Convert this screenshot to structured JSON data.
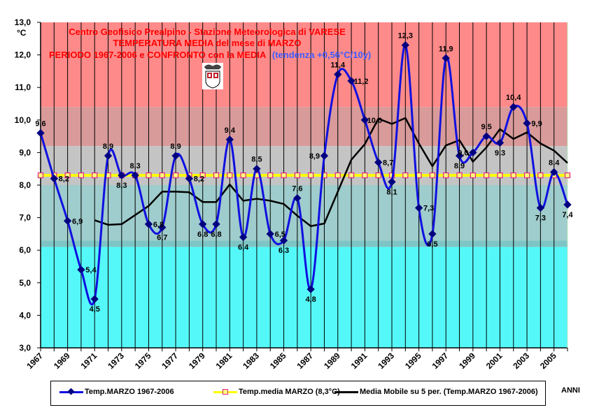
{
  "chart_data": {
    "type": "line",
    "title_lines": [
      "Centro Geofisico Prealpino - Stazione Meteorologica di VARESE",
      "TEMPERATURA MEDIA del mese di MARZO",
      "PERIODO 1967-2006 e CONFRONTO con la MEDIA"
    ],
    "trend_annotation": "(tendenza +0,56°C/10y)",
    "ylabel": "°C",
    "xlabel": "ANNI",
    "ylim": [
      3.0,
      13.0
    ],
    "y_ticks": [
      "3,0",
      "4,0",
      "5,0",
      "6,0",
      "7,0",
      "8,0",
      "9,0",
      "10,0",
      "11,0",
      "12,0",
      "13,0"
    ],
    "x_tick_labels": [
      "1967",
      "1969",
      "1971",
      "1973",
      "1975",
      "1977",
      "1979",
      "1981",
      "1983",
      "1985",
      "1987",
      "1989",
      "1991",
      "1993",
      "1995",
      "1997",
      "1999",
      "2001",
      "2003",
      "2005"
    ],
    "x": [
      1967,
      1968,
      1969,
      1970,
      1971,
      1972,
      1973,
      1974,
      1975,
      1976,
      1977,
      1978,
      1979,
      1980,
      1981,
      1982,
      1983,
      1984,
      1985,
      1986,
      1987,
      1988,
      1989,
      1990,
      1991,
      1992,
      1993,
      1994,
      1995,
      1996,
      1997,
      1998,
      1999,
      2000,
      2001,
      2002,
      2003,
      2004,
      2005,
      2006
    ],
    "grid": "vertical",
    "legend_position": "bottom",
    "series": [
      {
        "name": "Temp.MARZO 1967-2006",
        "color": "#1010e0",
        "marker": "diamond",
        "values": [
          9.6,
          8.2,
          6.9,
          5.4,
          4.5,
          8.9,
          8.3,
          8.3,
          6.8,
          6.7,
          8.9,
          8.2,
          6.8,
          6.8,
          9.4,
          6.4,
          8.5,
          6.5,
          6.3,
          7.6,
          4.8,
          8.9,
          11.4,
          11.2,
          10.0,
          8.7,
          8.1,
          12.3,
          7.3,
          6.5,
          11.9,
          8.9,
          9.0,
          9.5,
          9.3,
          10.4,
          9.9,
          7.3,
          8.4,
          7.4
        ],
        "labels": [
          "9,6",
          "8,2",
          "6,9",
          "5,4",
          "4,5",
          "8,9",
          "8,3",
          "8,3",
          "6,8",
          "6,7",
          "8,9",
          "8,2",
          "6,8",
          "6,8",
          "9,4",
          "6,4",
          "8,5",
          "6,5",
          "6,3",
          "7,6",
          "4,8",
          "8,9",
          "11,4",
          "11,2",
          "10,0",
          "8,7",
          "8,1",
          "12,3",
          "7,3",
          "6,5",
          "11,9",
          "8,9",
          "9,0",
          "9,5",
          "9,3",
          "10,4",
          "9,9",
          "7,3",
          "8,4",
          "7,4"
        ]
      },
      {
        "name": "Temp.media MARZO (8,3°C)",
        "color": "#ffff00",
        "marker": "square",
        "constant": 8.3
      },
      {
        "name": "Media Mobile su 5 per. (Temp.MARZO 1967-2006)",
        "color": "#000000",
        "marker": "none",
        "start_year": 1971,
        "values": [
          6.92,
          6.78,
          6.8,
          7.08,
          7.36,
          7.8,
          7.8,
          7.78,
          7.48,
          7.48,
          8.02,
          7.52,
          7.58,
          7.52,
          7.42,
          7.06,
          6.74,
          6.82,
          7.8,
          8.78,
          9.26,
          10.04,
          9.88,
          10.06,
          9.28,
          8.58,
          9.22,
          9.38,
          8.72,
          9.16,
          9.72,
          9.42,
          9.62,
          9.28,
          9.06,
          8.68
        ]
      }
    ],
    "background_bands": [
      {
        "from": 10.4,
        "to": 13.0,
        "color": "#ff8a8a"
      },
      {
        "from": 9.2,
        "to": 10.4,
        "color": "#d99a9a"
      },
      {
        "from": 8.0,
        "to": 9.2,
        "color": "#c4c4c4"
      },
      {
        "from": 6.3,
        "to": 8.0,
        "color": "#9fcccc"
      },
      {
        "from": 6.1,
        "to": 6.3,
        "color": "#7fc4c4"
      },
      {
        "from": 3.0,
        "to": 6.1,
        "color": "#55f8f8"
      }
    ]
  },
  "legend": {
    "items": [
      "Temp.MARZO 1967-2006",
      "Temp.media MARZO (8,3°C)",
      "Media Mobile su 5 per. (Temp.MARZO 1967-2006)"
    ],
    "x_axis_name": "ANNI"
  },
  "logo": {
    "icon": "coat-of-arms-icon"
  }
}
